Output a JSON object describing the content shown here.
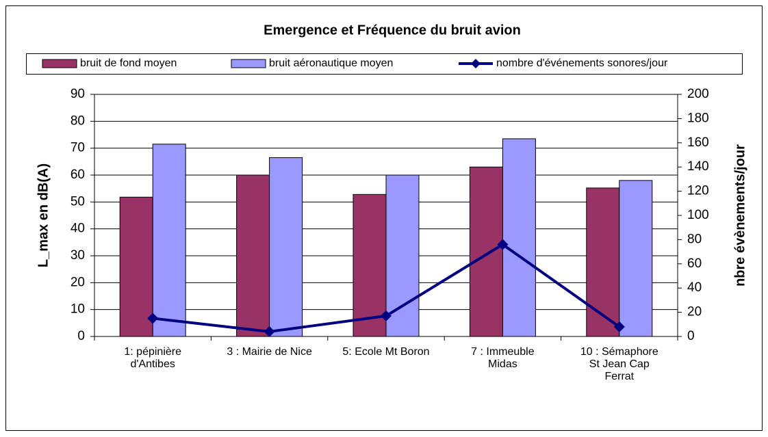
{
  "chart_data": {
    "type": "bar",
    "title": "Emergence et Fréquence du bruit avion",
    "categories": [
      "1: pépinière\nd'Antibes",
      "3 : Mairie de Nice",
      "5: Ecole Mt Boron",
      "7 : Immeuble\nMidas",
      "10 : Sémaphore\nSt Jean Cap\nFerrat"
    ],
    "series": [
      {
        "name": "bruit de fond moyen",
        "color": "#993366",
        "values": [
          51.8,
          60,
          52.8,
          63,
          55.2
        ]
      },
      {
        "name": "bruit aéronautique moyen",
        "color": "#9999ff",
        "values": [
          71.5,
          66.5,
          60,
          73.5,
          58
        ]
      },
      {
        "name": "nombre d'événements sonores/jour",
        "color": "#000080",
        "type": "line",
        "axis": "y2",
        "values": [
          15,
          4,
          17,
          76,
          8
        ]
      }
    ],
    "ylabel": "L_max en dB(A)",
    "y2label": "nbre évènements/jour",
    "ylim": [
      0,
      90
    ],
    "yticks": [
      0,
      10,
      20,
      30,
      40,
      50,
      60,
      70,
      80,
      90
    ],
    "y2lim": [
      0,
      200
    ],
    "y2ticks": [
      0,
      20,
      40,
      60,
      80,
      100,
      120,
      140,
      160,
      180,
      200
    ],
    "grid": true,
    "legend": "top"
  }
}
